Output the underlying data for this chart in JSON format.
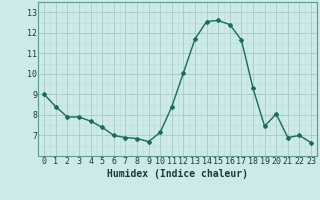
{
  "x": [
    0,
    1,
    2,
    3,
    4,
    5,
    6,
    7,
    8,
    9,
    10,
    11,
    12,
    13,
    14,
    15,
    16,
    17,
    18,
    19,
    20,
    21,
    22,
    23
  ],
  "y": [
    9.0,
    8.4,
    7.9,
    7.9,
    7.7,
    7.4,
    7.0,
    6.9,
    6.85,
    6.7,
    7.15,
    8.4,
    10.05,
    11.7,
    12.55,
    12.6,
    12.4,
    11.65,
    9.3,
    7.45,
    8.05,
    6.9,
    7.0,
    6.65
  ],
  "xlabel": "Humidex (Indice chaleur)",
  "ylim": [
    6.0,
    13.5
  ],
  "xlim": [
    -0.5,
    23.5
  ],
  "yticks": [
    7,
    8,
    9,
    10,
    11,
    12,
    13
  ],
  "xticks": [
    0,
    1,
    2,
    3,
    4,
    5,
    6,
    7,
    8,
    9,
    10,
    11,
    12,
    13,
    14,
    15,
    16,
    17,
    18,
    19,
    20,
    21,
    22,
    23
  ],
  "line_color": "#1a6b5a",
  "marker": "D",
  "marker_size": 2.0,
  "bg_color": "#cceae8",
  "grid_color_major": "#aac8c6",
  "grid_color_minor": "#bbdad8",
  "tick_label_fontsize": 6.0,
  "xlabel_fontsize": 7.0
}
